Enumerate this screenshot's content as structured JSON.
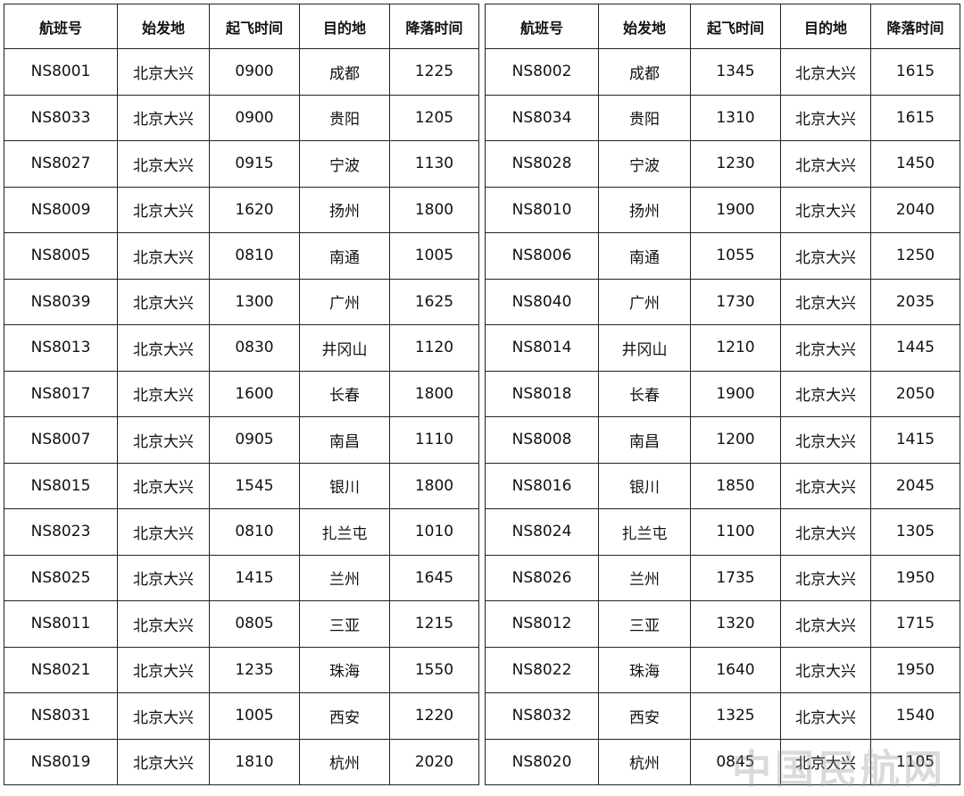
{
  "tables": [
    {
      "headers": [
        "航班号",
        "始发地",
        "起飞时间",
        "目的地",
        "降落时间"
      ],
      "rows": [
        [
          "NS8001",
          "北京大兴",
          "0900",
          "成都",
          "1225"
        ],
        [
          "NS8033",
          "北京大兴",
          "0900",
          "贵阳",
          "1205"
        ],
        [
          "NS8027",
          "北京大兴",
          "0915",
          "宁波",
          "1130"
        ],
        [
          "NS8009",
          "北京大兴",
          "1620",
          "扬州",
          "1800"
        ],
        [
          "NS8005",
          "北京大兴",
          "0810",
          "南通",
          "1005"
        ],
        [
          "NS8039",
          "北京大兴",
          "1300",
          "广州",
          "1625"
        ],
        [
          "NS8013",
          "北京大兴",
          "0830",
          "井冈山",
          "1120"
        ],
        [
          "NS8017",
          "北京大兴",
          "1600",
          "长春",
          "1800"
        ],
        [
          "NS8007",
          "北京大兴",
          "0905",
          "南昌",
          "1110"
        ],
        [
          "NS8015",
          "北京大兴",
          "1545",
          "银川",
          "1800"
        ],
        [
          "NS8023",
          "北京大兴",
          "0810",
          "扎兰屯",
          "1010"
        ],
        [
          "NS8025",
          "北京大兴",
          "1415",
          "兰州",
          "1645"
        ],
        [
          "NS8011",
          "北京大兴",
          "0805",
          "三亚",
          "1215"
        ],
        [
          "NS8021",
          "北京大兴",
          "1235",
          "珠海",
          "1550"
        ],
        [
          "NS8031",
          "北京大兴",
          "1005",
          "西安",
          "1220"
        ],
        [
          "NS8019",
          "北京大兴",
          "1810",
          "杭州",
          "2020"
        ]
      ]
    },
    {
      "headers": [
        "航班号",
        "始发地",
        "起飞时间",
        "目的地",
        "降落时间"
      ],
      "rows": [
        [
          "NS8002",
          "成都",
          "1345",
          "北京大兴",
          "1615"
        ],
        [
          "NS8034",
          "贵阳",
          "1310",
          "北京大兴",
          "1615"
        ],
        [
          "NS8028",
          "宁波",
          "1230",
          "北京大兴",
          "1450"
        ],
        [
          "NS8010",
          "扬州",
          "1900",
          "北京大兴",
          "2040"
        ],
        [
          "NS8006",
          "南通",
          "1055",
          "北京大兴",
          "1250"
        ],
        [
          "NS8040",
          "广州",
          "1730",
          "北京大兴",
          "2035"
        ],
        [
          "NS8014",
          "井冈山",
          "1210",
          "北京大兴",
          "1445"
        ],
        [
          "NS8018",
          "长春",
          "1900",
          "北京大兴",
          "2050"
        ],
        [
          "NS8008",
          "南昌",
          "1200",
          "北京大兴",
          "1415"
        ],
        [
          "NS8016",
          "银川",
          "1850",
          "北京大兴",
          "2045"
        ],
        [
          "NS8024",
          "扎兰屯",
          "1100",
          "北京大兴",
          "1305"
        ],
        [
          "NS8026",
          "兰州",
          "1735",
          "北京大兴",
          "1950"
        ],
        [
          "NS8012",
          "三亚",
          "1320",
          "北京大兴",
          "1715"
        ],
        [
          "NS8022",
          "珠海",
          "1640",
          "北京大兴",
          "1950"
        ],
        [
          "NS8032",
          "西安",
          "1325",
          "北京大兴",
          "1540"
        ],
        [
          "NS8020",
          "杭州",
          "0845",
          "北京大兴",
          "1105"
        ]
      ]
    }
  ],
  "watermark": "中国民航网"
}
